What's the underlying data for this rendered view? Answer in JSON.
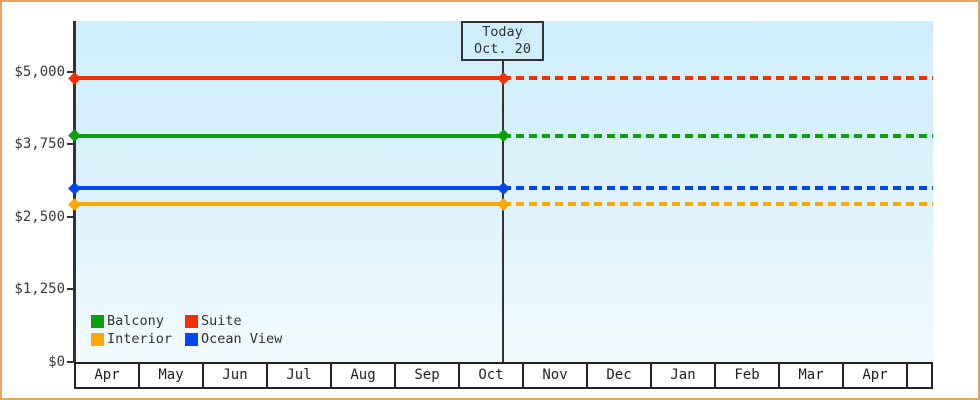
{
  "frame": {
    "border_color": "#e9a55e",
    "background": "#ffffff"
  },
  "chart_data": {
    "type": "line",
    "title": "",
    "description": "Cabin price history/forecast by category; horizontal price lines solid before today, dashed after today",
    "x_axis": {
      "label": "",
      "categories": [
        "Apr",
        "May",
        "Jun",
        "Jul",
        "Aug",
        "Sep",
        "Oct",
        "Nov",
        "Dec",
        "Jan",
        "Feb",
        "Mar",
        "Apr"
      ]
    },
    "y_axis": {
      "label": "",
      "tick_labels": [
        "$0",
        "$1,250",
        "$2,500",
        "$3,750",
        "$5,000"
      ],
      "tick_values": [
        0,
        1250,
        2500,
        3750,
        5000
      ],
      "range": [
        0,
        5870
      ],
      "unit": "USD"
    },
    "today_marker": {
      "title": "Today",
      "date": "Oct. 20",
      "month": "Oct",
      "month_fraction": 0.645
    },
    "series": [
      {
        "name": "Suite",
        "color": "#f53000",
        "value": 4880,
        "style_before_today": "solid",
        "style_after_today": "dashed"
      },
      {
        "name": "Balcony",
        "color": "#0aa00a",
        "value": 3890,
        "style_before_today": "solid",
        "style_after_today": "dashed"
      },
      {
        "name": "Ocean View",
        "color": "#0545f0",
        "value": 2990,
        "style_before_today": "solid",
        "style_after_today": "dashed"
      },
      {
        "name": "Interior",
        "color": "#ffa800",
        "value": 2715,
        "style_before_today": "solid",
        "style_after_today": "dashed"
      }
    ],
    "legend": {
      "position": "bottom-left",
      "items": [
        {
          "label": "Balcony",
          "color": "#0aa00a"
        },
        {
          "label": "Suite",
          "color": "#f53000"
        },
        {
          "label": "Interior",
          "color": "#ffa800"
        },
        {
          "label": "Ocean View",
          "color": "#0545f0"
        }
      ]
    },
    "grid": false,
    "plot_background": {
      "top": "#cfeefb",
      "bottom": "#f2fbff"
    }
  }
}
